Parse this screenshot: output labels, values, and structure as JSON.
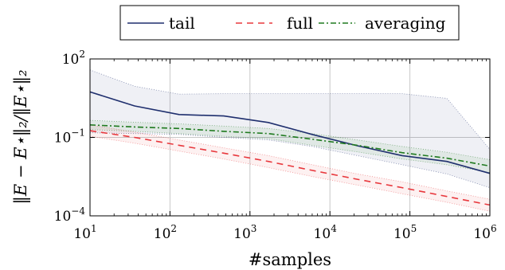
{
  "chart_data": {
    "type": "line",
    "title": "",
    "xlabel": "#samples",
    "ylabel": "‖E − E⋆‖₂/‖E⋆‖₂",
    "x_scale": "log",
    "y_scale": "log",
    "xlim": [
      10,
      1000000
    ],
    "ylim": [
      0.0001,
      100
    ],
    "grid": true,
    "legend_position": "top",
    "x_ticks": [
      {
        "base": "10",
        "exp": "1"
      },
      {
        "base": "10",
        "exp": "2"
      },
      {
        "base": "10",
        "exp": "3"
      },
      {
        "base": "10",
        "exp": "4"
      },
      {
        "base": "10",
        "exp": "5"
      },
      {
        "base": "10",
        "exp": "6"
      }
    ],
    "y_ticks": [
      {
        "base": "10",
        "exp": "2",
        "value": 100
      },
      {
        "base": "10",
        "exp": "−1",
        "value": 0.1
      },
      {
        "base": "10",
        "exp": "−4",
        "value": 0.0001
      }
    ],
    "x": [
      10,
      36,
      130,
      470,
      1700,
      6000,
      22000,
      80000,
      290000,
      1000000
    ],
    "series": [
      {
        "name": "tail",
        "color": "#1f2f6e",
        "dash": "solid",
        "values": [
          5.5,
          1.6,
          0.75,
          0.66,
          0.37,
          0.13,
          0.048,
          0.02,
          0.012,
          0.0042
        ],
        "band_upper": [
          38,
          9,
          4.5,
          4.7,
          4.7,
          4.7,
          4.7,
          4.7,
          3.1,
          0.035
        ],
        "band_lower": [
          0.15,
          0.14,
          0.13,
          0.1,
          0.08,
          0.045,
          0.02,
          0.009,
          0.004,
          0.0012
        ]
      },
      {
        "name": "full",
        "color": "#e8383d",
        "dash": "dashed",
        "values": [
          0.18,
          0.1,
          0.05,
          0.025,
          0.012,
          0.0055,
          0.0025,
          0.0012,
          0.00055,
          0.00026
        ],
        "band_upper": [
          0.3,
          0.16,
          0.08,
          0.04,
          0.02,
          0.009,
          0.004,
          0.002,
          0.0009,
          0.00043
        ],
        "band_lower": [
          0.11,
          0.06,
          0.03,
          0.015,
          0.007,
          0.0032,
          0.0015,
          0.0007,
          0.00033,
          0.00015
        ]
      },
      {
        "name": "averaging",
        "color": "#1f7a1f",
        "dash": "dashdot",
        "values": [
          0.3,
          0.25,
          0.22,
          0.17,
          0.14,
          0.085,
          0.05,
          0.026,
          0.016,
          0.008
        ],
        "band_upper": [
          0.45,
          0.38,
          0.33,
          0.27,
          0.22,
          0.14,
          0.08,
          0.045,
          0.027,
          0.014
        ],
        "band_lower": [
          0.2,
          0.17,
          0.14,
          0.11,
          0.09,
          0.05,
          0.028,
          0.015,
          0.009,
          0.0045
        ]
      }
    ]
  }
}
